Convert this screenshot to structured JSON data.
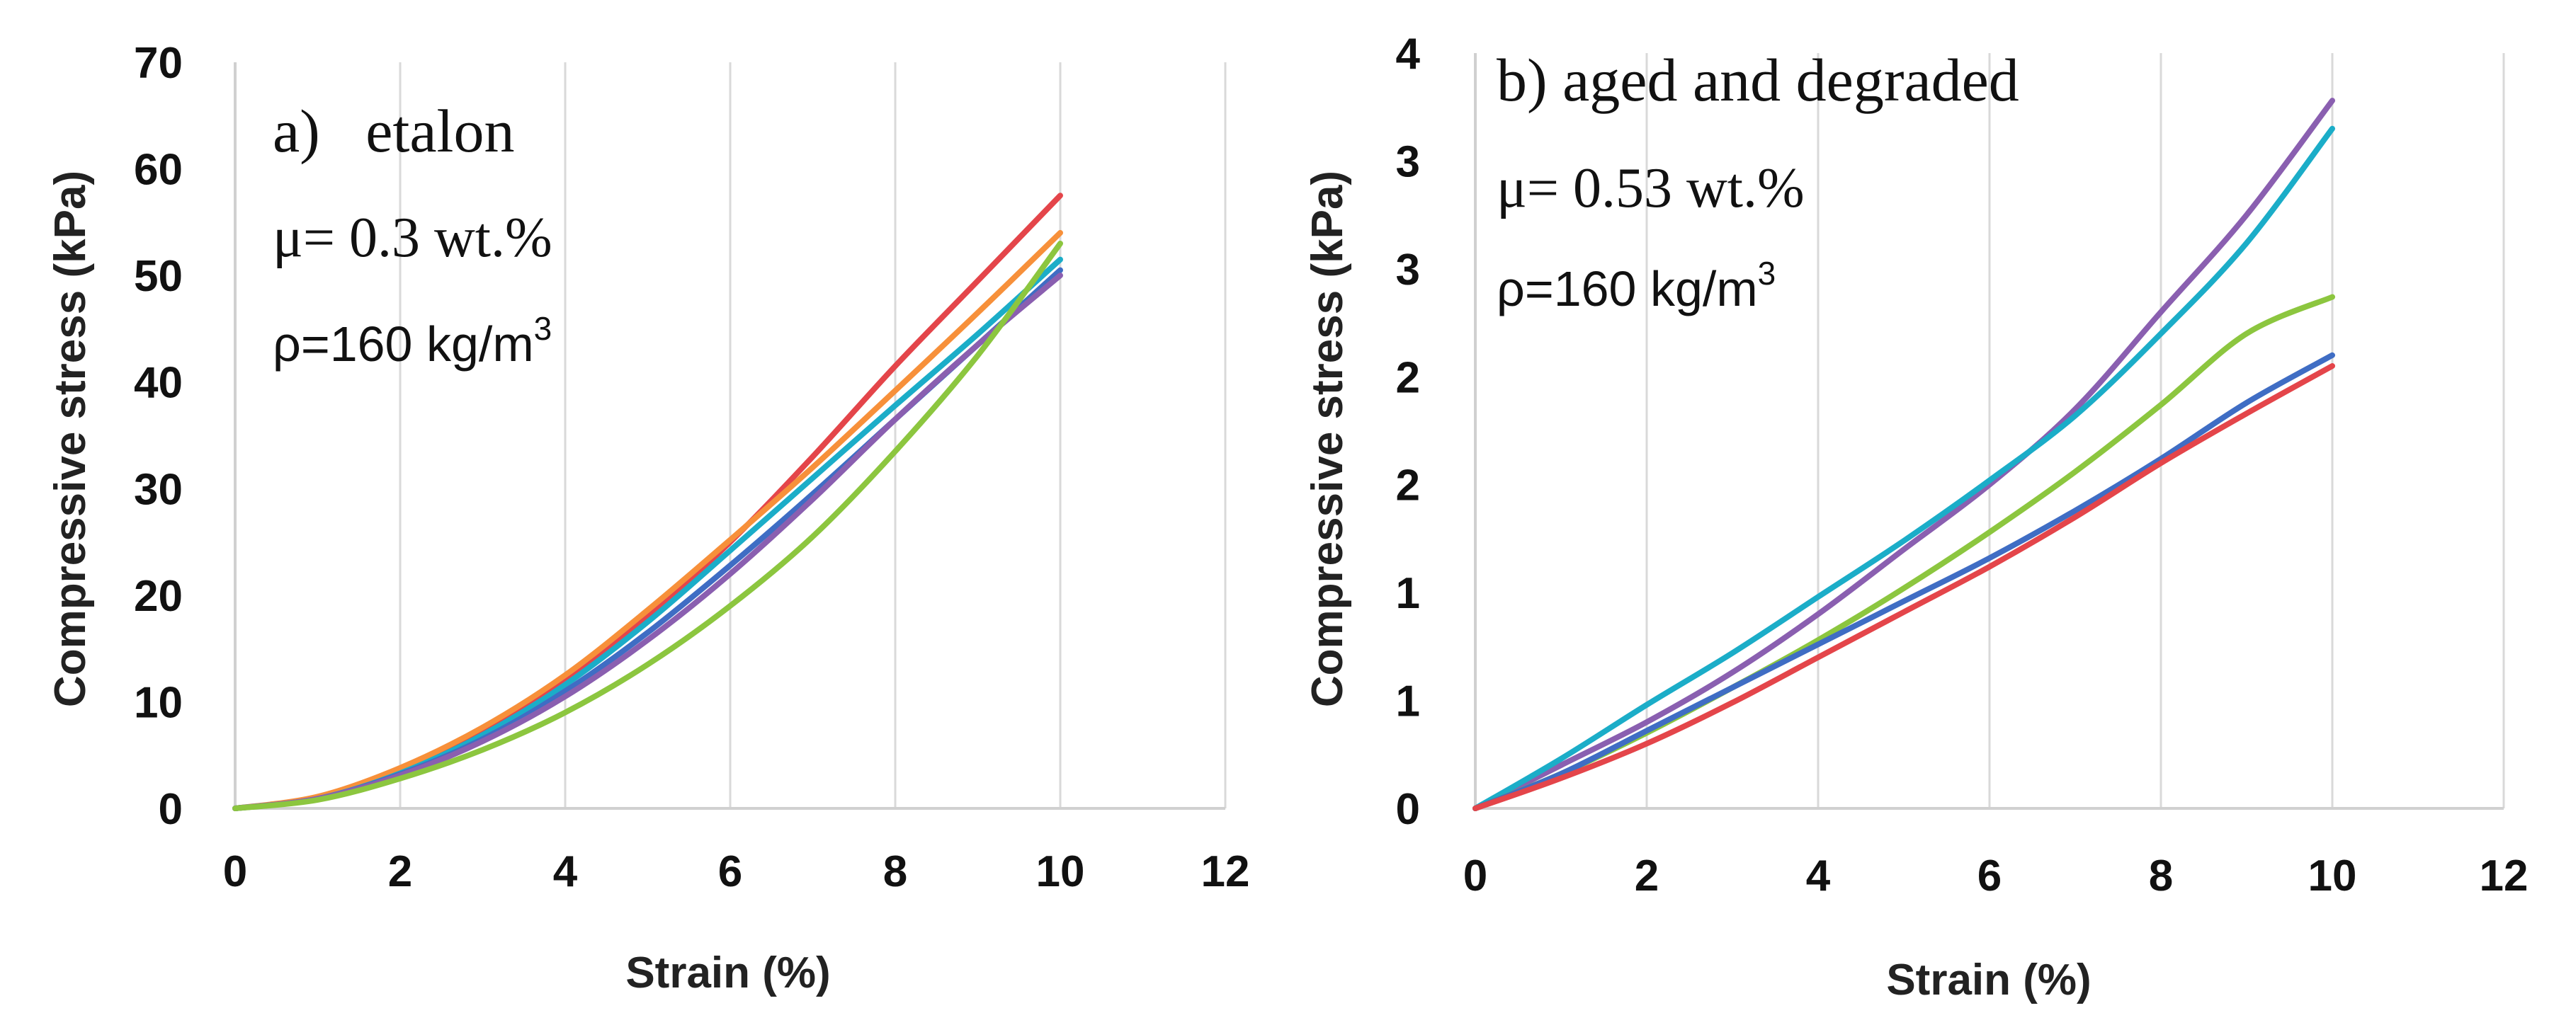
{
  "chart_data": [
    {
      "type": "line",
      "panel": "a",
      "title": "a)   etalon",
      "annotations": {
        "mu_text": "μ= 0.3 wt.%",
        "rho_text": "ρ=160 kg/m",
        "rho_sup": "3"
      },
      "xlabel": "Strain (%)",
      "ylabel": "Compressive stress (kPa)",
      "xlim": [
        0,
        12
      ],
      "ylim": [
        0,
        70
      ],
      "xticks": [
        0,
        2,
        4,
        6,
        8,
        10,
        12
      ],
      "yticks": [
        0,
        10,
        20,
        30,
        40,
        50,
        60,
        70
      ],
      "ytick_labels": [
        "0",
        "10",
        "20",
        "30",
        "40",
        "50",
        "60",
        "70"
      ],
      "grid": "vertical",
      "x": [
        0,
        1,
        2,
        3,
        4,
        5,
        6,
        7,
        8,
        9,
        10
      ],
      "series": [
        {
          "name": "red",
          "color": "#e4454a",
          "values": [
            0,
            1.0,
            3.6,
            7.2,
            12.0,
            18.0,
            25.0,
            33.0,
            41.5,
            49.5,
            57.5
          ]
        },
        {
          "name": "orange",
          "color": "#f7903a",
          "values": [
            0,
            1.1,
            3.8,
            7.6,
            12.5,
            18.6,
            25.2,
            32.0,
            39.2,
            46.5,
            54.0
          ]
        },
        {
          "name": "teal",
          "color": "#1badc8",
          "values": [
            0,
            0.9,
            3.3,
            6.9,
            11.6,
            17.5,
            24.2,
            31.0,
            37.8,
            44.5,
            51.5
          ]
        },
        {
          "name": "blue",
          "color": "#3f6dc4",
          "values": [
            0,
            0.9,
            3.2,
            6.5,
            11.0,
            16.5,
            22.8,
            29.5,
            36.5,
            43.5,
            50.5
          ]
        },
        {
          "name": "purple",
          "color": "#8a5fb0",
          "values": [
            0,
            0.9,
            3.1,
            6.3,
            10.5,
            15.8,
            22.0,
            29.0,
            36.5,
            43.5,
            50.0
          ]
        },
        {
          "name": "green",
          "color": "#8cc63f",
          "values": [
            0,
            0.8,
            2.8,
            5.5,
            9.0,
            13.5,
            19.0,
            25.5,
            33.5,
            42.5,
            53.0
          ]
        }
      ]
    },
    {
      "type": "line",
      "panel": "b",
      "title": "b) aged and degraded",
      "annotations": {
        "mu_text": "μ= 0.53 wt.%",
        "rho_text": "ρ=160 kg/m",
        "rho_sup": "3"
      },
      "xlabel": "Strain (%)",
      "ylabel": "Compressive stress (kPa)",
      "xlim": [
        0,
        12
      ],
      "ylim": [
        0,
        3.5
      ],
      "xticks": [
        0,
        2,
        4,
        6,
        8,
        10,
        12
      ],
      "yticks": [
        0,
        0.5,
        1,
        1.5,
        2,
        2.5,
        3,
        3.5
      ],
      "ytick_labels": [
        "0",
        "1",
        "1",
        "2",
        "2",
        "3",
        "3",
        "4"
      ],
      "grid": "vertical",
      "x": [
        0,
        1,
        2,
        3,
        4,
        5,
        6,
        7,
        8,
        9,
        10
      ],
      "series": [
        {
          "name": "purple",
          "color": "#8a5fb0",
          "values": [
            0,
            0.2,
            0.4,
            0.63,
            0.9,
            1.2,
            1.5,
            1.85,
            2.3,
            2.75,
            3.28
          ]
        },
        {
          "name": "teal",
          "color": "#1badc8",
          "values": [
            0,
            0.23,
            0.48,
            0.72,
            0.98,
            1.24,
            1.52,
            1.82,
            2.2,
            2.62,
            3.15
          ]
        },
        {
          "name": "green",
          "color": "#8cc63f",
          "values": [
            0,
            0.16,
            0.35,
            0.56,
            0.78,
            1.02,
            1.28,
            1.56,
            1.87,
            2.2,
            2.37
          ]
        },
        {
          "name": "blue",
          "color": "#3f6dc4",
          "values": [
            0,
            0.16,
            0.36,
            0.56,
            0.76,
            0.96,
            1.16,
            1.38,
            1.62,
            1.88,
            2.1
          ]
        },
        {
          "name": "red",
          "color": "#e4454a",
          "values": [
            0,
            0.14,
            0.3,
            0.49,
            0.7,
            0.91,
            1.12,
            1.35,
            1.6,
            1.83,
            2.05
          ]
        }
      ]
    }
  ]
}
